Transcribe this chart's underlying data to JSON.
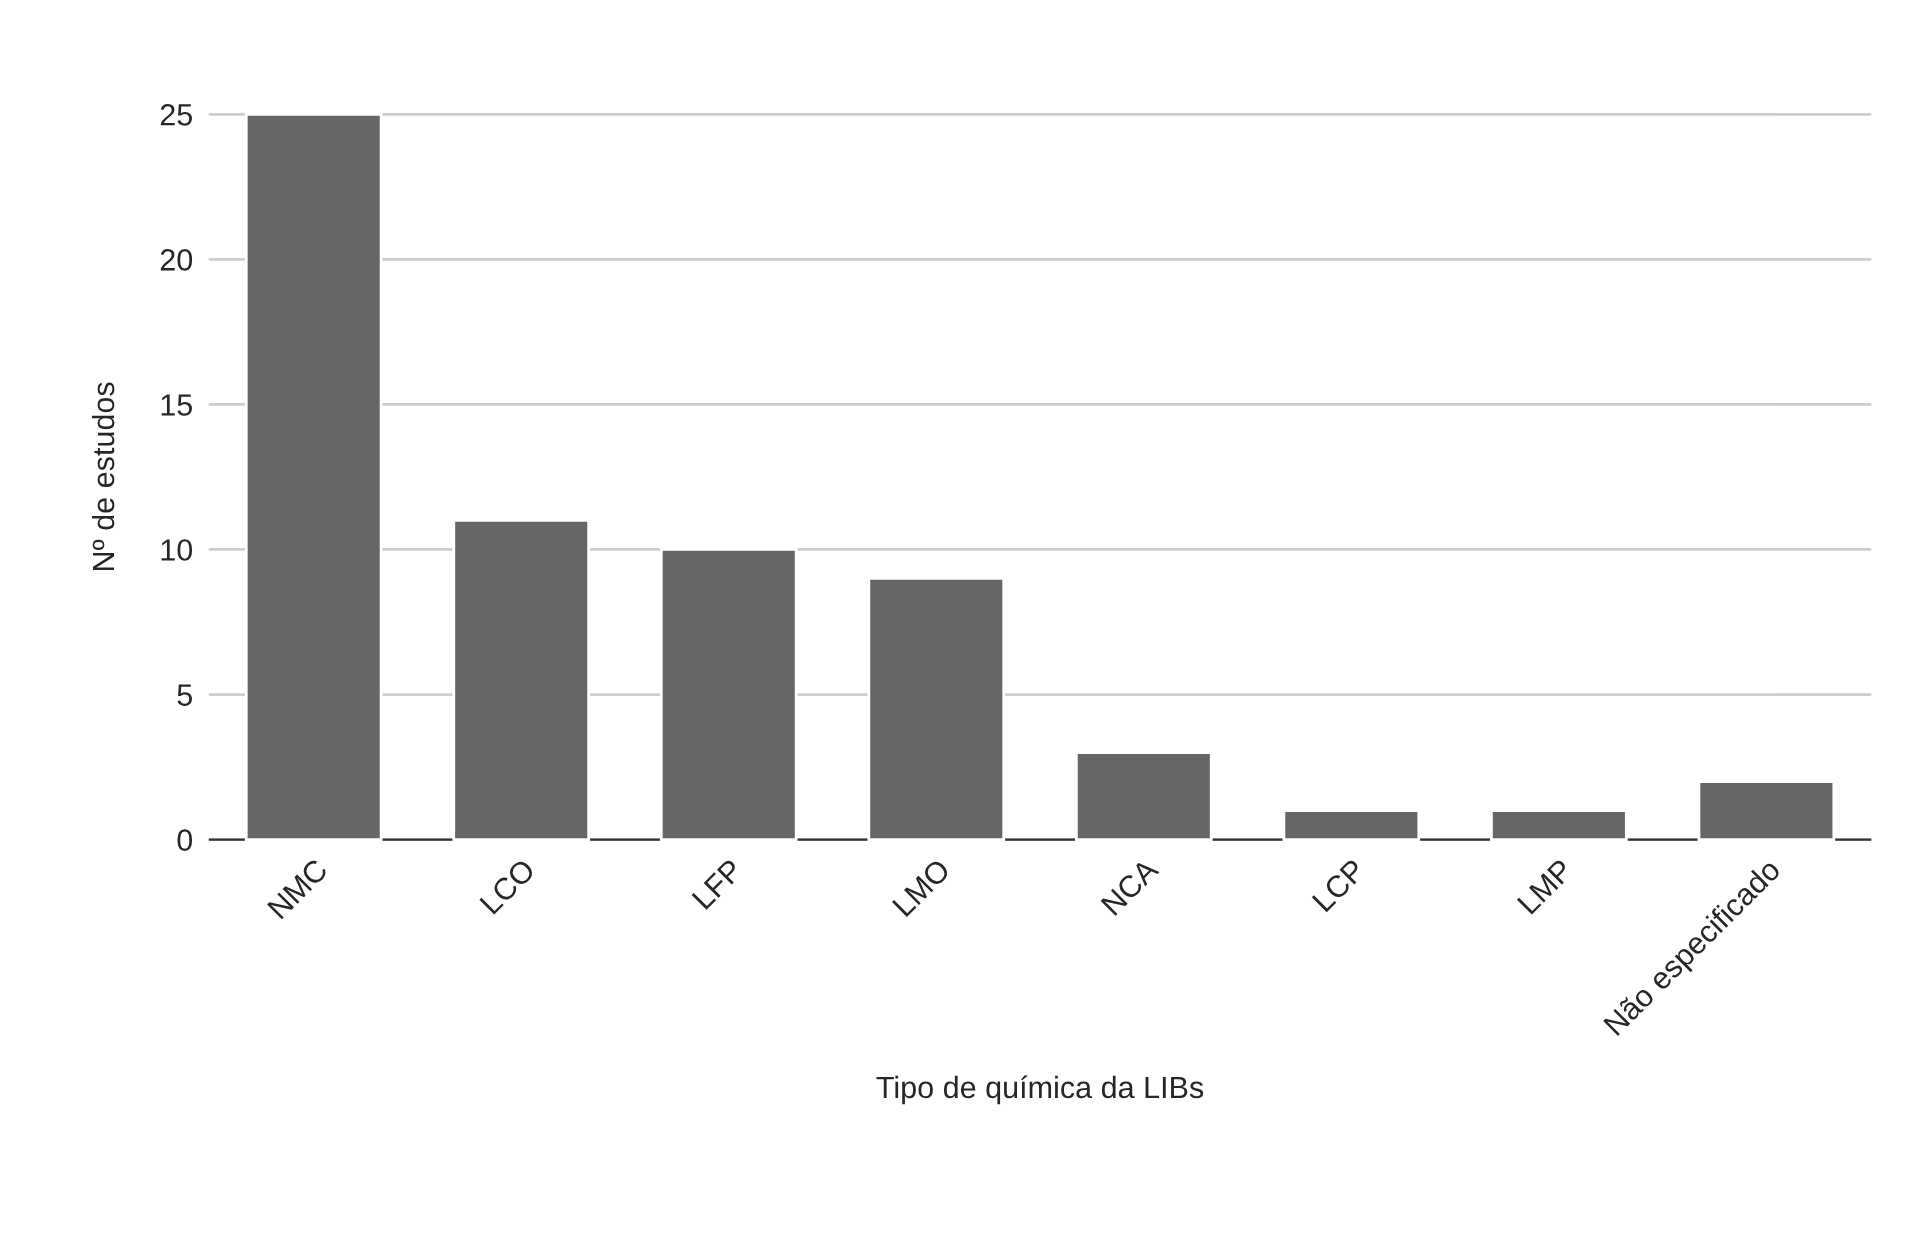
{
  "chart_data": {
    "type": "bar",
    "xlabel": "Tipo de química da LIBs",
    "ylabel": "Nº de estudos",
    "categories": [
      "NMC",
      "LCO",
      "LFP",
      "LMO",
      "NCA",
      "LCP",
      "LMP",
      "Não especificado"
    ],
    "values": [
      25,
      11,
      10,
      9,
      3,
      1,
      1,
      2
    ],
    "color": "#666666",
    "ylim": [
      0,
      25
    ],
    "yticks": [
      0,
      5,
      10,
      15,
      20,
      25
    ],
    "grid": "y",
    "legend": false
  }
}
